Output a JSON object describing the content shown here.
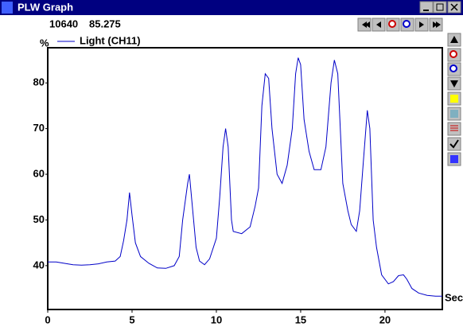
{
  "window": {
    "title": "PLW Graph",
    "readout": [
      "10640",
      "85.275"
    ]
  },
  "chart_data": {
    "type": "line",
    "x_label": "Sec",
    "y_label": "%",
    "x": [
      0,
      0.5,
      1,
      1.5,
      2,
      2.5,
      3,
      3.5,
      4,
      4.3,
      4.5,
      4.7,
      4.85,
      5,
      5.2,
      5.5,
      6,
      6.5,
      7,
      7.5,
      7.8,
      8,
      8.3,
      8.4,
      8.6,
      8.8,
      9,
      9.3,
      9.6,
      10,
      10.2,
      10.4,
      10.55,
      10.7,
      10.9,
      11,
      11.5,
      12,
      12.3,
      12.5,
      12.7,
      12.9,
      13.1,
      13.3,
      13.6,
      13.9,
      14.2,
      14.5,
      14.7,
      14.85,
      15,
      15.2,
      15.5,
      15.8,
      16.2,
      16.5,
      16.8,
      17,
      17.2,
      17.5,
      17.8,
      18,
      18.3,
      18.5,
      18.7,
      18.95,
      19.1,
      19.3,
      19.5,
      19.8,
      20.2,
      20.5,
      20.8,
      21.1,
      21.3,
      21.6,
      22,
      22.5,
      23,
      23.4
    ],
    "series": [
      {
        "name": "Light (CH11)",
        "color": "#0000c8",
        "values": [
          40.8,
          40.8,
          40.5,
          40.2,
          40.1,
          40.2,
          40.4,
          40.8,
          41,
          42,
          45.5,
          50,
          56,
          51,
          45,
          42,
          40.5,
          39.5,
          39.4,
          40,
          42,
          50,
          58,
          60,
          52,
          44,
          41,
          40.2,
          41.5,
          46,
          55,
          66,
          70,
          66,
          50,
          47.5,
          47,
          48.5,
          53,
          57,
          75,
          82,
          81,
          70,
          60,
          58,
          62,
          70,
          82,
          85.5,
          84,
          72,
          65,
          61,
          61,
          66,
          80,
          85,
          82,
          58,
          52,
          49,
          47.5,
          52,
          62,
          74,
          70,
          50,
          44,
          38,
          36,
          36.5,
          37.8,
          38,
          37,
          35,
          34,
          33.5,
          33.3,
          33.3
        ]
      }
    ],
    "xlim": [
      0,
      23.4
    ],
    "ylim": [
      30.4,
      87.7
    ],
    "xticks": [
      0,
      5,
      10,
      15,
      20
    ],
    "yticks": [
      40,
      50,
      60,
      70,
      80
    ],
    "grid": false
  }
}
